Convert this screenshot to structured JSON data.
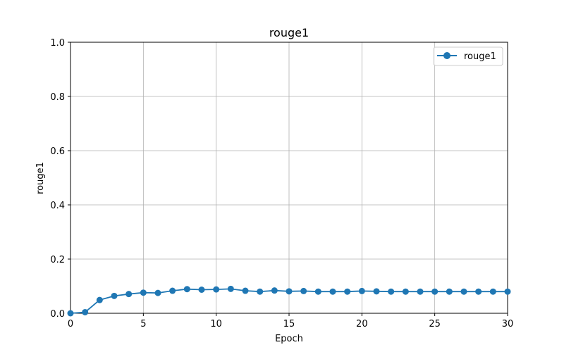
{
  "chart_data": {
    "type": "line",
    "title": "rouge1",
    "xlabel": "Epoch",
    "ylabel": "rouge1",
    "xlim": [
      0,
      30
    ],
    "ylim": [
      0,
      1.0
    ],
    "xticks": [
      0,
      5,
      10,
      15,
      20,
      25,
      30
    ],
    "yticks": [
      0.0,
      0.2,
      0.4,
      0.6,
      0.8,
      1.0
    ],
    "ytick_labels": [
      "0.0",
      "0.2",
      "0.4",
      "0.6",
      "0.8",
      "1.0"
    ],
    "grid": true,
    "legend_position": "top-right",
    "x": [
      0,
      1,
      2,
      3,
      4,
      5,
      6,
      7,
      8,
      9,
      10,
      11,
      12,
      13,
      14,
      15,
      16,
      17,
      18,
      19,
      20,
      21,
      22,
      23,
      24,
      25,
      26,
      27,
      28,
      29,
      30
    ],
    "series": [
      {
        "name": "rouge1",
        "color": "#1f77b4",
        "marker": "circle",
        "values": [
          0.0,
          0.004,
          0.049,
          0.064,
          0.071,
          0.076,
          0.075,
          0.083,
          0.089,
          0.087,
          0.088,
          0.09,
          0.083,
          0.08,
          0.084,
          0.081,
          0.082,
          0.08,
          0.08,
          0.08,
          0.082,
          0.081,
          0.08,
          0.08,
          0.08,
          0.08,
          0.08,
          0.08,
          0.08,
          0.08,
          0.08
        ]
      }
    ]
  }
}
